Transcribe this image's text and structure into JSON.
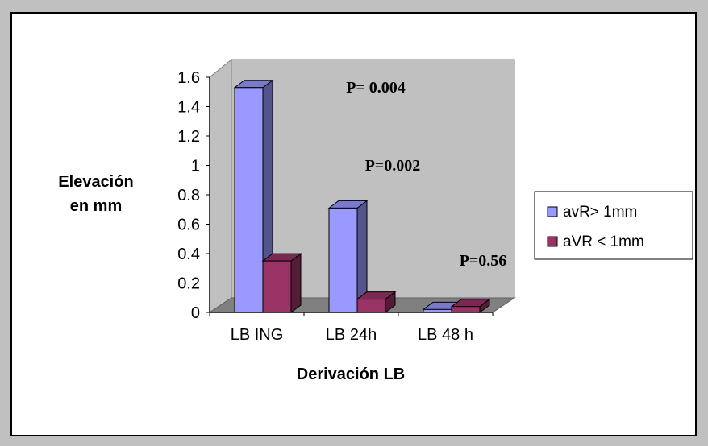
{
  "chart_data": {
    "type": "bar",
    "categories": [
      "LB ING",
      "LB 24h",
      "LB 48 h"
    ],
    "series": [
      {
        "name": "avR> 1mm",
        "values": [
          1.53,
          0.71,
          0.02
        ],
        "color": "#9999ff"
      },
      {
        "name": "aVR < 1mm",
        "values": [
          0.35,
          0.09,
          0.04
        ],
        "color": "#993366"
      }
    ],
    "ylim": [
      0,
      1.6
    ],
    "yticks": [
      "0",
      "0.2",
      "0.4",
      "0.6",
      "0.8",
      "1",
      "1.2",
      "1.4",
      "1.6"
    ],
    "xlabel": "Derivación LB",
    "ylabel_line1": "Elevación",
    "ylabel_line2": "en mm",
    "annotations": [
      "P= 0.004",
      "P=0.002",
      "P=0.56"
    ],
    "wall_color": "#c0c0c0",
    "legend_position": "right",
    "grid": false,
    "style": "3d-clustered"
  }
}
